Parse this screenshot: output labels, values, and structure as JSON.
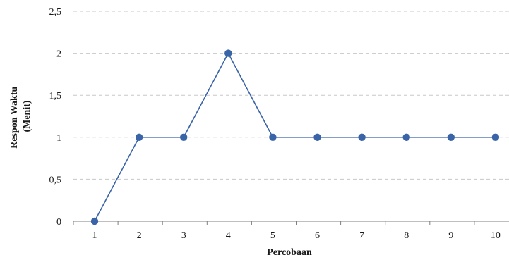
{
  "chart_data": {
    "type": "line",
    "title": "",
    "xlabel": "Percobaan",
    "ylabel": [
      "Respon Waktu",
      "(Menit)"
    ],
    "x": [
      "1",
      "2",
      "3",
      "4",
      "5",
      "6",
      "7",
      "8",
      "9",
      "10"
    ],
    "series": [
      {
        "values": [
          0,
          1,
          1,
          2,
          1,
          1,
          1,
          1,
          1,
          1
        ]
      }
    ],
    "ylim": [
      0,
      2.5
    ],
    "yticks": [
      0,
      0.5,
      1,
      1.5,
      2,
      2.5
    ],
    "ytick_labels": [
      "0",
      "0,5",
      "1",
      "1,5",
      "2",
      "2,5"
    ],
    "grid": "horizontal-dashed",
    "legend": "none",
    "colors": {
      "series": "#3a64a8",
      "grid": "#c8c8c8",
      "axis": "#7f7f7f"
    }
  }
}
